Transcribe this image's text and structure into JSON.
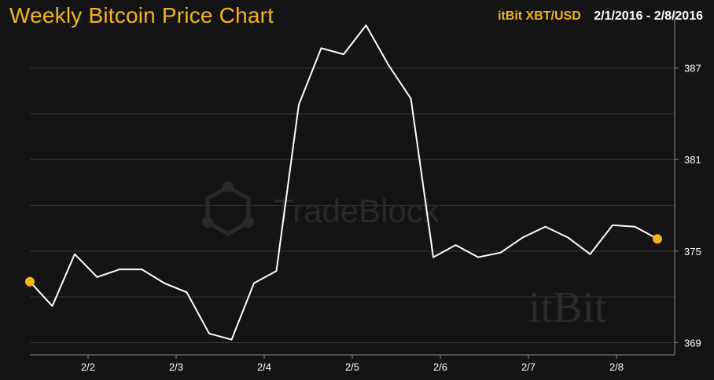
{
  "colors": {
    "background": "#141414",
    "accent": "#f5b51b",
    "line": "#ffffff",
    "grid": "#3a3a3a",
    "watermark": "#2a2a2a"
  },
  "header": {
    "title": "Weekly Bitcoin Price Chart",
    "exchange": "itBit XBT/USD",
    "date_range": "2/1/2016 - 2/8/2016"
  },
  "watermarks": {
    "tradeblock": "TradeBlock",
    "itbit": "itBit"
  },
  "chart_data": {
    "type": "line",
    "x_tick_labels": [
      "2/2",
      "2/3",
      "2/4",
      "2/5",
      "2/6",
      "2/7",
      "2/8"
    ],
    "y_tick_labels": [
      "369",
      "375",
      "381",
      "387"
    ],
    "y_ticks": [
      369,
      375,
      381,
      387
    ],
    "ylim": [
      368.2,
      389.4
    ],
    "grid": true,
    "y_axis_position": "right",
    "series": [
      {
        "values": [
          373.0,
          371.4,
          374.8,
          373.3,
          373.8,
          373.8,
          372.9,
          372.3,
          369.6,
          369.2,
          372.9,
          373.7,
          384.6,
          388.3,
          387.9,
          389.8,
          387.2,
          385.0,
          374.6,
          375.4,
          374.6,
          374.9,
          375.9,
          376.6,
          375.9,
          374.8,
          376.7,
          376.6,
          375.8
        ]
      }
    ],
    "markers": [
      "first",
      "last"
    ]
  }
}
